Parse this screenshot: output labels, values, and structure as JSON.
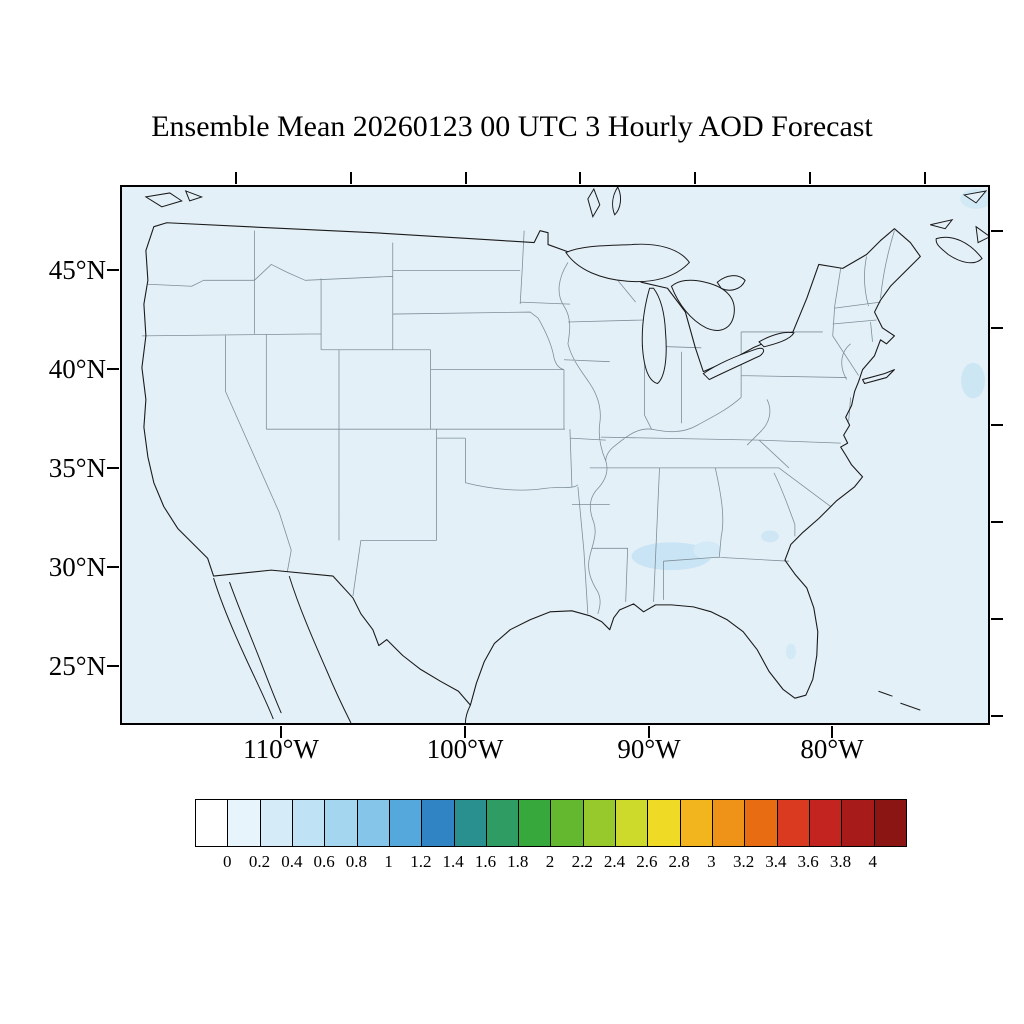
{
  "chart_data": {
    "type": "heatmap",
    "title": "Ensemble Mean 20260123 00 UTC 3 Hourly AOD Forecast",
    "variable": "Aerosol Optical Depth (AOD) forecast, ensemble mean",
    "region": "Continental United States with state boundaries",
    "projection_note": "conic map of CONUS, ocean and land shaded by AOD value",
    "x_axis": {
      "tick_labels": [
        "110°W",
        "100°W",
        "90°W",
        "80°W"
      ]
    },
    "y_axis": {
      "tick_labels": [
        "45°N",
        "40°N",
        "35°N",
        "30°N",
        "25°N"
      ]
    },
    "colorbar": {
      "range": [
        0,
        4
      ],
      "interval": 0.2,
      "tick_labels": [
        "0",
        "0.2",
        "0.4",
        "0.6",
        "0.8",
        "1",
        "1.2",
        "1.4",
        "1.6",
        "1.8",
        "2",
        "2.2",
        "2.4",
        "2.6",
        "2.8",
        "3",
        "3.2",
        "3.4",
        "3.6",
        "3.8",
        "4"
      ],
      "colors": [
        "#ffffff",
        "#e8f4fb",
        "#d5ecf8",
        "#bfe2f4",
        "#a5d6ef",
        "#85c5e9",
        "#55a8db",
        "#3184c4",
        "#2a8f8f",
        "#2f9d63",
        "#37a93c",
        "#63b82f",
        "#97c92c",
        "#cdd92b",
        "#efdb26",
        "#f3b51e",
        "#ef9318",
        "#e86c12",
        "#d93a20",
        "#c42420",
        "#a81b1b",
        "#8b1513"
      ]
    },
    "field_summary": "AOD is near 0-0.2 (palest blue) across the entire domain; slightly elevated AOD patch over Mississippi/Alabama/Georgia around 31N and small light patches offshore in the western Atlantic",
    "background_color": "#e4f0f8",
    "patch_color": "#c9e4f4"
  }
}
